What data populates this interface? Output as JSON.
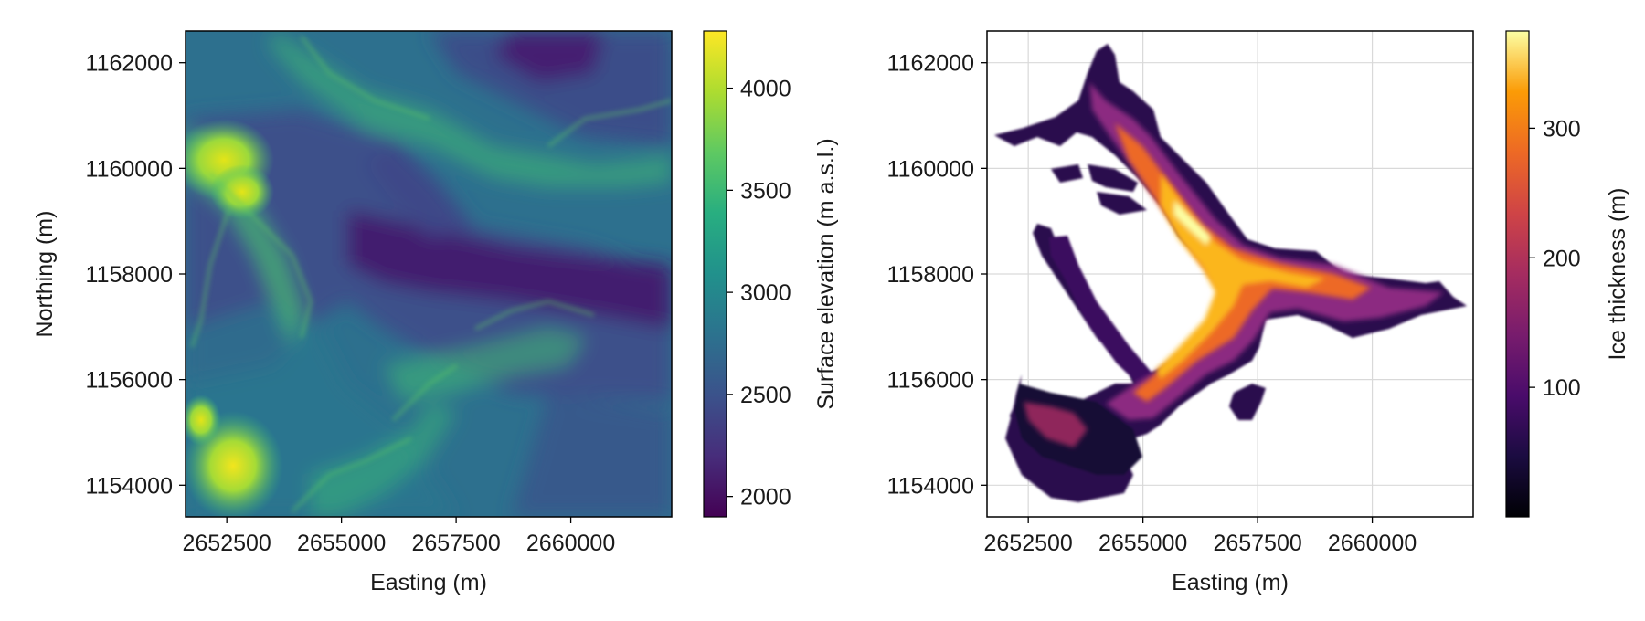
{
  "chart_data": [
    {
      "type": "heatmap",
      "title": "",
      "xlabel": "Easting (m)",
      "ylabel": "Northing (m)",
      "xlim": [
        2651600,
        2662200
      ],
      "ylim": [
        1153400,
        1162600
      ],
      "x_ticks": [
        2652500,
        2655000,
        2657500,
        2660000
      ],
      "x_tick_labels": [
        "2652500",
        "2655000",
        "2657500",
        "2660000"
      ],
      "y_ticks": [
        1154000,
        1156000,
        1158000,
        1160000,
        1162000
      ],
      "y_tick_labels": [
        "1154000",
        "1156000",
        "1158000",
        "1160000",
        "1162000"
      ],
      "grid": false,
      "colormap": "viridis",
      "colorbar": {
        "label": "Surface elevation (m a.s.l.)",
        "range": [
          1900,
          4280
        ],
        "ticks": [
          2000,
          2500,
          3000,
          3500,
          4000
        ],
        "tick_labels": [
          "2000",
          "2500",
          "3000",
          "3500",
          "4000"
        ]
      }
    },
    {
      "type": "heatmap",
      "title": "",
      "xlabel": "Easting (m)",
      "ylabel": "",
      "xlim": [
        2651600,
        2662200
      ],
      "ylim": [
        1153400,
        1162600
      ],
      "x_ticks": [
        2652500,
        2655000,
        2657500,
        2660000
      ],
      "x_tick_labels": [
        "2652500",
        "2655000",
        "2657500",
        "2660000"
      ],
      "y_ticks": [
        1154000,
        1156000,
        1158000,
        1160000,
        1162000
      ],
      "y_tick_labels": [
        "1154000",
        "1156000",
        "1158000",
        "1160000",
        "1162000"
      ],
      "grid": true,
      "colormap": "inferno",
      "colorbar": {
        "label": "Ice thickness (m)",
        "range": [
          0,
          375
        ],
        "ticks": [
          100,
          200,
          300
        ],
        "tick_labels": [
          "100",
          "200",
          "300"
        ]
      }
    }
  ]
}
